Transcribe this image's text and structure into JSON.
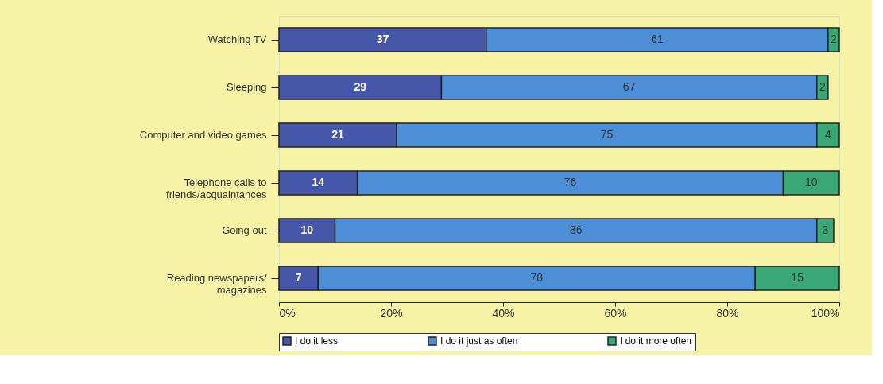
{
  "chart_data": {
    "type": "bar",
    "orientation": "horizontal",
    "stacked": true,
    "data_labels": true,
    "grid": false,
    "legend": "bottom",
    "categories": [
      "Watching TV",
      "Sleeping",
      "Computer and video games",
      "Telephone calls to\nfriends/acquaintances",
      "Going out",
      "Reading newspapers/\nmagazines"
    ],
    "series": [
      {
        "name": "I do it less",
        "color": "#4656a8",
        "values": [
          37,
          29,
          21,
          14,
          10,
          7
        ]
      },
      {
        "name": "I do it just as often",
        "color": "#4d8fd6",
        "values": [
          61,
          67,
          75,
          76,
          86,
          78
        ]
      },
      {
        "name": "I do it more often",
        "color": "#3aa876",
        "values": [
          2,
          2,
          4,
          10,
          3,
          15
        ]
      }
    ],
    "xlim": [
      0,
      100
    ],
    "xticks": [
      {
        "value": 0,
        "label": "0%"
      },
      {
        "value": 20,
        "label": "20%"
      },
      {
        "value": 40,
        "label": "40%"
      },
      {
        "value": 60,
        "label": "60%"
      },
      {
        "value": 80,
        "label": "80%"
      },
      {
        "value": 100,
        "label": "100%"
      }
    ]
  }
}
